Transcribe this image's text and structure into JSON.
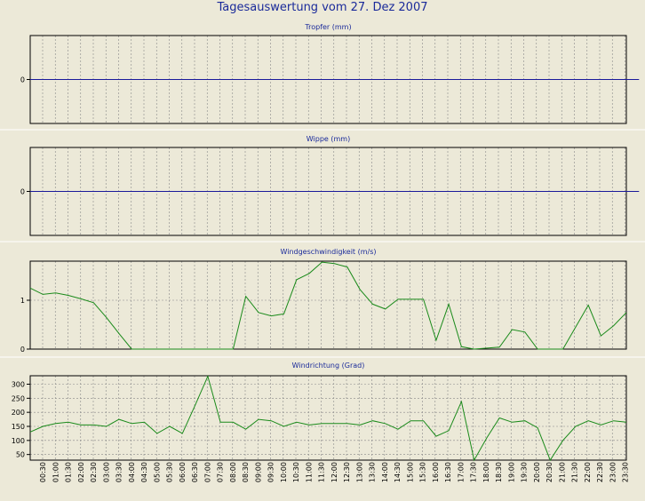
{
  "title": "Tagesauswertung vom 27. Dez 2007",
  "colors": {
    "background": "#ECE9D8",
    "title": "#1a2a9a",
    "zero_line": "#1a1a9a",
    "series": "#1a8a1a",
    "grid": "#888888"
  },
  "x_labels": [
    "00:30",
    "01:00",
    "01:30",
    "02:00",
    "02:30",
    "03:00",
    "03:30",
    "04:00",
    "04:30",
    "05:00",
    "05:30",
    "06:00",
    "06:30",
    "07:00",
    "07:30",
    "08:00",
    "08:30",
    "09:00",
    "09:30",
    "10:00",
    "10:30",
    "11:00",
    "11:30",
    "12:00",
    "12:30",
    "13:00",
    "13:30",
    "14:00",
    "14:30",
    "15:00",
    "15:30",
    "16:00",
    "16:30",
    "17:00",
    "17:30",
    "18:00",
    "18:30",
    "19:00",
    "19:30",
    "20:00",
    "20:30",
    "21:00",
    "21:30",
    "22:00",
    "22:30",
    "23:00",
    "23:30"
  ],
  "chart_data": [
    {
      "type": "line",
      "title": "Tropfer (mm)",
      "yticks": [
        0
      ],
      "ylim": [
        -1,
        1
      ],
      "grid": true,
      "series": [
        {
          "values": [
            0,
            0,
            0,
            0,
            0,
            0,
            0,
            0,
            0,
            0,
            0,
            0,
            0,
            0,
            0,
            0,
            0,
            0,
            0,
            0,
            0,
            0,
            0,
            0,
            0,
            0,
            0,
            0,
            0,
            0,
            0,
            0,
            0,
            0,
            0,
            0,
            0,
            0,
            0,
            0,
            0,
            0,
            0,
            0,
            0,
            0,
            0,
            0,
            0
          ]
        }
      ]
    },
    {
      "type": "line",
      "title": "Wippe (mm)",
      "yticks": [
        0
      ],
      "ylim": [
        -1,
        1
      ],
      "grid": true,
      "series": [
        {
          "values": [
            0,
            0,
            0,
            0,
            0,
            0,
            0,
            0,
            0,
            0,
            0,
            0,
            0,
            0,
            0,
            0,
            0,
            0,
            0,
            0,
            0,
            0,
            0,
            0,
            0,
            0,
            0,
            0,
            0,
            0,
            0,
            0,
            0,
            0,
            0,
            0,
            0,
            0,
            0,
            0,
            0,
            0,
            0,
            0,
            0,
            0,
            0,
            0,
            0
          ]
        }
      ]
    },
    {
      "type": "line",
      "title": "Windgeschwindigkeit (m/s)",
      "yticks": [
        0,
        1
      ],
      "ylim": [
        0,
        1.8
      ],
      "grid": true,
      "series": [
        {
          "values": [
            1.25,
            1.12,
            1.15,
            1.1,
            1.03,
            0.95,
            0.65,
            0.32,
            0,
            0,
            0,
            0,
            0,
            0,
            0,
            0,
            0,
            1.08,
            0.75,
            0.68,
            0.72,
            1.42,
            1.55,
            1.78,
            1.75,
            1.68,
            1.22,
            0.92,
            0.82,
            1.02,
            1.02,
            1.02,
            0.18,
            0.92,
            0.05,
            0,
            0.02,
            0.04,
            0.4,
            0.35,
            0,
            0,
            0,
            0.45,
            0.9,
            0.27,
            0.48,
            0.75
          ]
        }
      ]
    },
    {
      "type": "line",
      "title": "Windrichtung (Grad)",
      "yticks": [
        50,
        100,
        150,
        200,
        250,
        300
      ],
      "ylim": [
        30,
        330
      ],
      "grid": true,
      "series": [
        {
          "values": [
            130,
            150,
            160,
            165,
            155,
            155,
            150,
            175,
            160,
            165,
            125,
            150,
            125,
            225,
            328,
            165,
            165,
            140,
            175,
            170,
            150,
            165,
            155,
            160,
            160,
            160,
            155,
            170,
            160,
            140,
            170,
            170,
            115,
            135,
            238,
            30,
            110,
            180,
            165,
            170,
            145,
            30,
            100,
            150,
            170,
            155,
            170,
            165
          ]
        }
      ]
    }
  ]
}
